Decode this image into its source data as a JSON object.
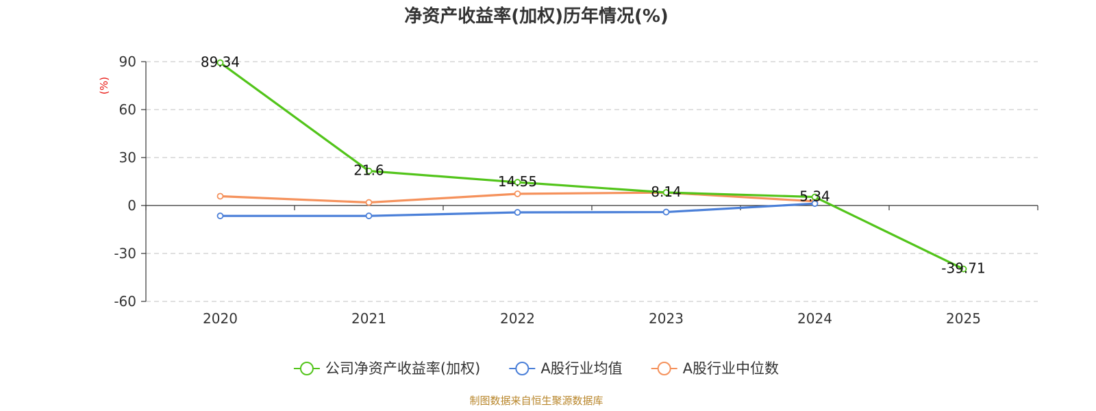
{
  "chart_data": {
    "type": "line",
    "title": "净资产收益率(加权)历年情况(%)",
    "ylabel": "(%)",
    "xlabel": "",
    "categories": [
      "2020",
      "2021",
      "2022",
      "2023",
      "2024",
      "2025"
    ],
    "ylim": [
      -60,
      90
    ],
    "yticks": [
      90,
      60,
      30,
      0,
      -30,
      -60
    ],
    "grid": true,
    "legend_position": "bottom",
    "series": [
      {
        "name": "公司净资产收益率(加权)",
        "color": "#52c41a",
        "values": [
          89.34,
          21.6,
          14.55,
          8.14,
          5.34,
          -39.71
        ],
        "labels": [
          "89.34",
          "21.6",
          "14.55",
          "8.14",
          "5.34",
          "-39.71"
        ]
      },
      {
        "name": "A股行业均值",
        "color": "#4a7fd8",
        "values": [
          -6.5,
          -6.5,
          -4.3,
          -4.1,
          1.2,
          null
        ]
      },
      {
        "name": "A股行业中位数",
        "color": "#f5915b",
        "values": [
          5.8,
          1.9,
          7.3,
          8.1,
          2.6,
          null
        ]
      }
    ]
  },
  "source": {
    "text": "制图数据来自恒生聚源数据库",
    "color": "#b8862b"
  },
  "colors": {
    "axis": "#333333",
    "grid": "#cccccc",
    "ylabel": "#e8140f"
  }
}
